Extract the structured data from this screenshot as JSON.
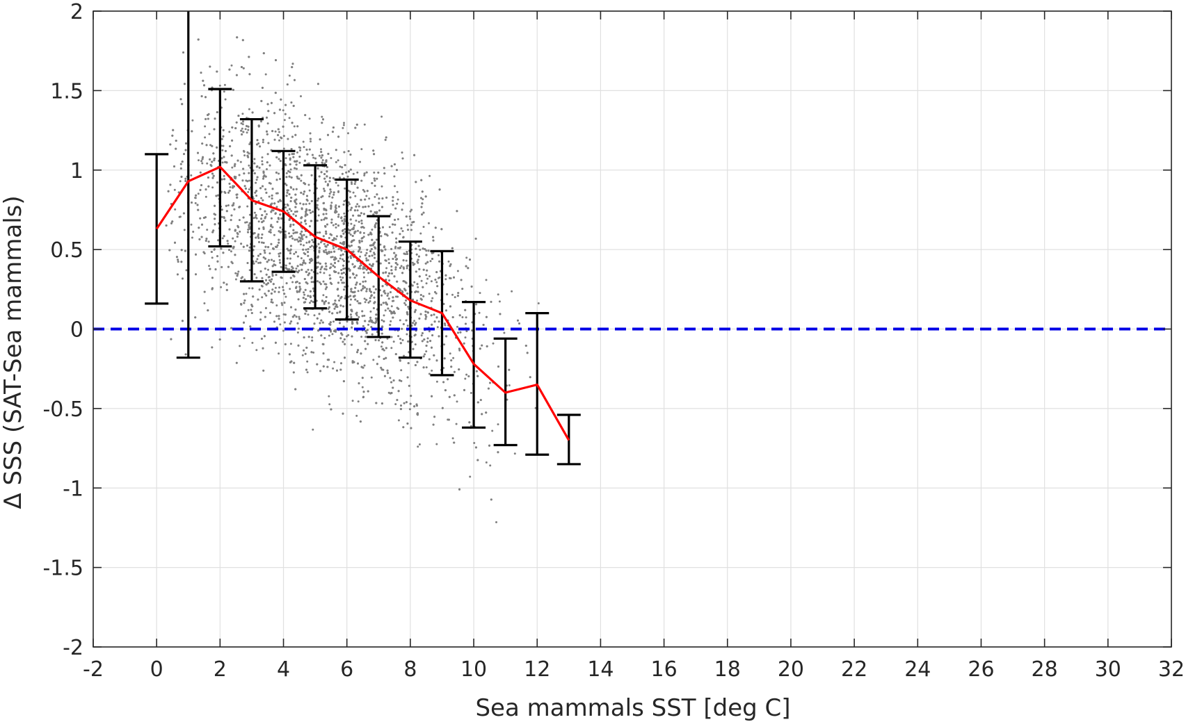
{
  "chart_data": {
    "type": "scatter",
    "xlabel": "Sea mammals SST [deg C]",
    "ylabel": "Δ SSS (SAT-Sea mammals)",
    "xlim": [
      -2,
      32
    ],
    "ylim": [
      -2,
      2
    ],
    "x_ticks": [
      -2,
      0,
      2,
      4,
      6,
      8,
      10,
      12,
      14,
      16,
      18,
      20,
      22,
      24,
      26,
      28,
      30,
      32
    ],
    "y_ticks": [
      -2,
      -1.5,
      -1,
      -0.5,
      0,
      0.5,
      1,
      1.5,
      2
    ],
    "x_tick_labels": [
      "-2",
      "0",
      "2",
      "4",
      "6",
      "8",
      "10",
      "12",
      "14",
      "16",
      "18",
      "20",
      "22",
      "24",
      "26",
      "28",
      "30",
      "32"
    ],
    "y_tick_labels": [
      "-2",
      "-1.5",
      "-1",
      "-0.5",
      "0",
      "0.5",
      "1",
      "1.5",
      "2"
    ],
    "grid": true,
    "colors": {
      "scatter": "#808080",
      "mean_line": "#ff0000",
      "error_bars": "#000000",
      "zero_line": "#0000e6",
      "grid": "#e0e0e0",
      "axes": "#262626"
    },
    "scatter_cloud": {
      "description_free": true,
      "approx_points": 5000,
      "x_range": [
        0,
        13
      ],
      "trend_center": "follows mean line",
      "spread_sd": 0.38
    },
    "series": [
      {
        "type": "line",
        "x": [
          0,
          1,
          2,
          3,
          4,
          5,
          6,
          7,
          8,
          9,
          10,
          11,
          12,
          13
        ],
        "y": [
          0.63,
          0.93,
          1.02,
          0.81,
          0.74,
          0.58,
          0.5,
          0.33,
          0.18,
          0.1,
          -0.22,
          -0.4,
          -0.35,
          -0.7
        ]
      },
      {
        "type": "errorbar",
        "x": [
          0,
          1,
          2,
          3,
          4,
          5,
          6,
          7,
          8,
          9,
          10,
          11,
          12,
          13
        ],
        "lower": [
          0.16,
          -0.18,
          0.52,
          0.3,
          0.36,
          0.13,
          0.06,
          -0.05,
          -0.18,
          -0.29,
          -0.62,
          -0.73,
          -0.79,
          -0.85
        ],
        "upper": [
          1.1,
          2.0,
          1.51,
          1.32,
          1.12,
          1.03,
          0.94,
          0.71,
          0.55,
          0.49,
          0.17,
          -0.06,
          0.1,
          -0.54
        ]
      },
      {
        "type": "hline",
        "y": 0,
        "style": "dashed"
      }
    ]
  }
}
